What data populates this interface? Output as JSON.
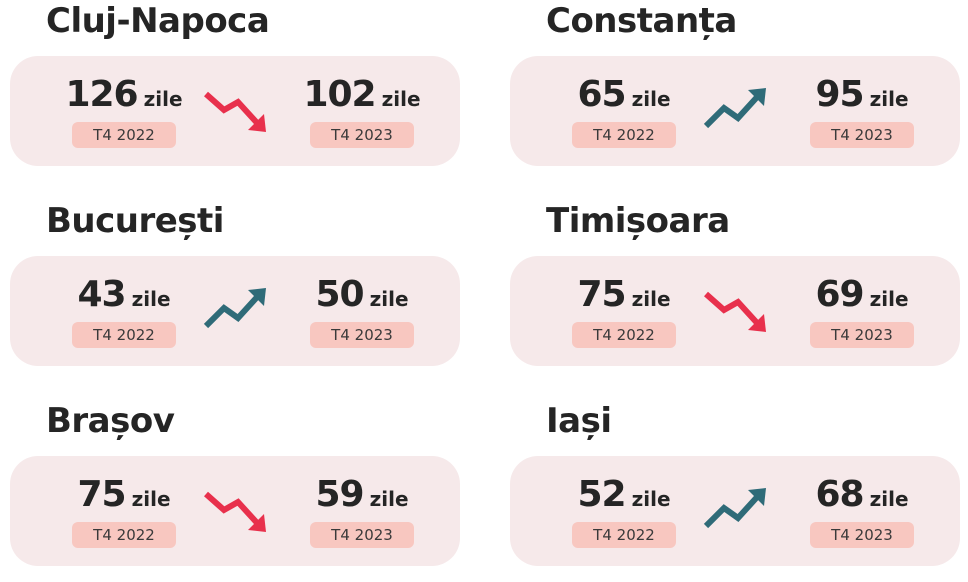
{
  "unit": "zile",
  "colors": {
    "up": "#2f6b78",
    "down": "#e8304c",
    "card": "#f6e9ea",
    "badge": "#f8c7c0"
  },
  "cities": [
    {
      "name": "Cluj-Napoca",
      "before": {
        "value": "126",
        "period": "T4 2022"
      },
      "after": {
        "value": "102",
        "period": "T4 2023"
      },
      "trend": "down"
    },
    {
      "name": "Constanța",
      "before": {
        "value": "65",
        "period": "T4 2022"
      },
      "after": {
        "value": "95",
        "period": "T4 2023"
      },
      "trend": "up"
    },
    {
      "name": "București",
      "before": {
        "value": "43",
        "period": "T4 2022"
      },
      "after": {
        "value": "50",
        "period": "T4 2023"
      },
      "trend": "up"
    },
    {
      "name": "Timișoara",
      "before": {
        "value": "75",
        "period": "T4 2022"
      },
      "after": {
        "value": "69",
        "period": "T4 2023"
      },
      "trend": "down"
    },
    {
      "name": "Brașov",
      "before": {
        "value": "75",
        "period": "T4 2022"
      },
      "after": {
        "value": "59",
        "period": "T4 2023"
      },
      "trend": "down"
    },
    {
      "name": "Iași",
      "before": {
        "value": "52",
        "period": "T4 2022"
      },
      "after": {
        "value": "68",
        "period": "T4 2023"
      },
      "trend": "up"
    }
  ]
}
